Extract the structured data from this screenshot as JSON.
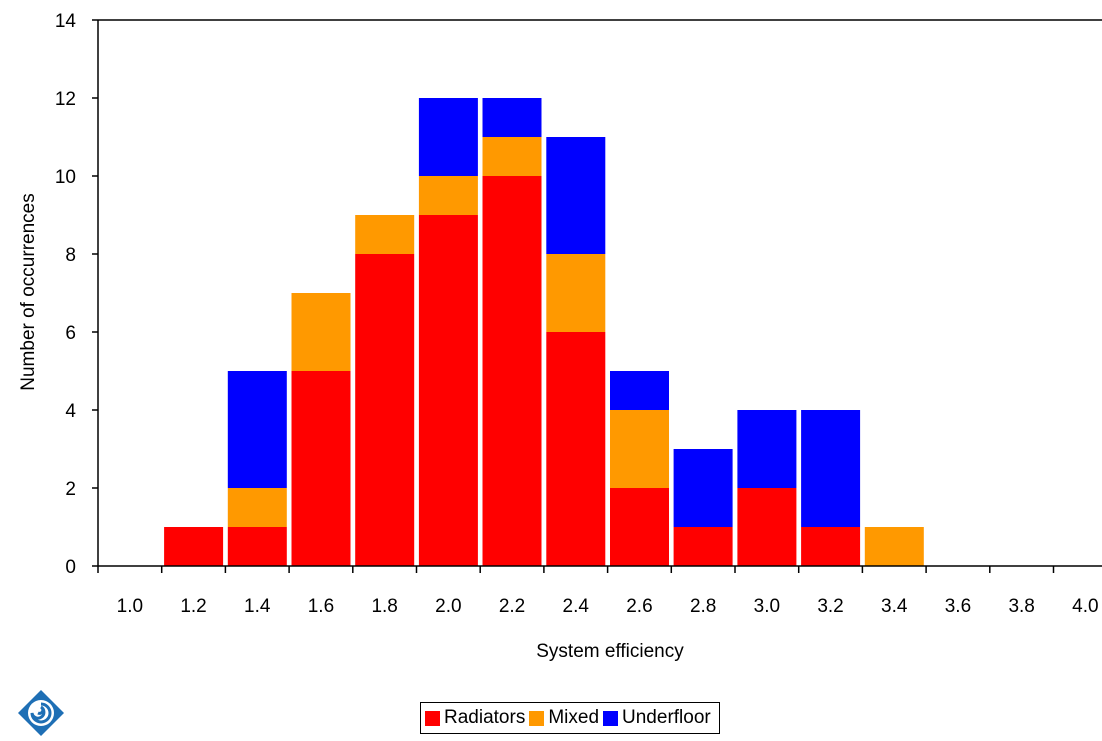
{
  "chart_data": {
    "type": "bar",
    "stacked": true,
    "title": "",
    "xlabel": "System efficiency",
    "ylabel": "Number of occurrences",
    "ylim": [
      0,
      14
    ],
    "yticks": [
      "0",
      "2",
      "4",
      "6",
      "8",
      "10",
      "12",
      "14"
    ],
    "categories": [
      "1.0",
      "1.2",
      "1.4",
      "1.6",
      "1.8",
      "2.0",
      "2.2",
      "2.4",
      "2.6",
      "2.8",
      "3.0",
      "3.2",
      "3.4",
      "3.6",
      "3.8",
      "4.0"
    ],
    "series": [
      {
        "name": "Radiators",
        "color": "#ff0000",
        "values": [
          0,
          1,
          1,
          5,
          8,
          9,
          10,
          6,
          2,
          1,
          2,
          1,
          0,
          0,
          0,
          0
        ]
      },
      {
        "name": "Mixed",
        "color": "#ff9900",
        "values": [
          0,
          0,
          1,
          2,
          1,
          1,
          1,
          2,
          2,
          0,
          0,
          0,
          1,
          0,
          0,
          0
        ]
      },
      {
        "name": "Underfloor",
        "color": "#0000ff",
        "values": [
          0,
          0,
          3,
          0,
          0,
          2,
          1,
          3,
          1,
          2,
          2,
          3,
          0,
          0,
          0,
          0
        ]
      }
    ],
    "grid": false,
    "legend_position": "bottom"
  },
  "logo": {
    "icon": "company-swirl-logo-icon"
  }
}
